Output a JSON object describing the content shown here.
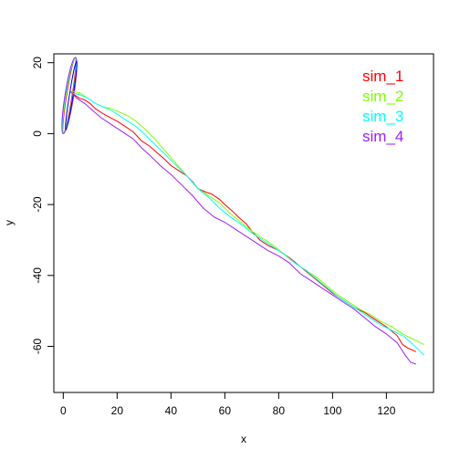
{
  "chart_data": {
    "type": "line",
    "title": "",
    "xlabel": "x",
    "ylabel": "y",
    "xlim": [
      -3.5,
      137.5
    ],
    "ylim": [
      -73,
      22.5
    ],
    "xticks": [
      0,
      20,
      40,
      60,
      80,
      100,
      120
    ],
    "xtick_labels": [
      "0",
      "20",
      "40",
      "60",
      "80",
      "100",
      "120"
    ],
    "yticks": [
      -60,
      -40,
      -20,
      0,
      20
    ],
    "ytick_labels": [
      "-60",
      "-40",
      "-20",
      "0",
      "20"
    ],
    "grid": false,
    "legend_position": "top-right",
    "series": [
      {
        "name": "sim_1",
        "color": "#ff0000",
        "x": [
          2.5,
          4,
          6,
          8,
          10,
          12,
          15,
          18,
          20,
          23,
          26,
          29,
          32,
          35,
          38,
          40,
          43,
          46,
          48,
          50,
          53,
          55,
          58,
          60,
          63,
          65,
          68,
          70,
          73,
          76,
          80,
          84,
          88,
          92,
          96,
          100,
          104,
          108,
          112,
          116,
          120,
          124,
          126,
          128,
          131
        ],
        "y": [
          12,
          11,
          10,
          9.5,
          8.5,
          7,
          5.5,
          4.3,
          3.5,
          2,
          0.5,
          -2,
          -3.5,
          -5.5,
          -7.5,
          -9,
          -10.5,
          -12,
          -13.5,
          -15.5,
          -16.5,
          -17,
          -18.5,
          -20,
          -22,
          -23.5,
          -25.5,
          -27.5,
          -30,
          -31.5,
          -33,
          -35,
          -37.5,
          -40,
          -42.5,
          -45,
          -47,
          -49,
          -50.5,
          -52.5,
          -54.5,
          -57,
          -59.5,
          -60.5,
          -61.5
        ]
      },
      {
        "name": "sim_2",
        "color": "#7fff00",
        "x": [
          3,
          6,
          9,
          12,
          15,
          18,
          21,
          24,
          27,
          30,
          34,
          38,
          42,
          46,
          50,
          54,
          58,
          62,
          66,
          70,
          74,
          78,
          82,
          86,
          90,
          94,
          98,
          102,
          106,
          110,
          114,
          118,
          122,
          126,
          130,
          134
        ],
        "y": [
          12,
          11.5,
          10,
          8.5,
          7.5,
          7,
          6,
          5,
          3.5,
          1.5,
          -1.5,
          -5,
          -8.5,
          -12,
          -15.5,
          -17.5,
          -19.5,
          -22.5,
          -25,
          -27.5,
          -29.5,
          -31.5,
          -34,
          -36.5,
          -38.5,
          -40.5,
          -43,
          -45.5,
          -47.5,
          -49.5,
          -51,
          -53,
          -54.5,
          -56.5,
          -58,
          -59.5
        ]
      },
      {
        "name": "sim_3",
        "color": "#00ffff",
        "x": [
          3,
          6,
          9,
          12,
          15,
          18,
          21,
          24,
          27,
          30,
          34,
          38,
          42,
          46,
          50,
          54,
          58,
          62,
          66,
          70,
          74,
          78,
          82,
          86,
          90,
          94,
          98,
          102,
          106,
          110,
          114,
          118,
          122,
          126,
          130,
          134
        ],
        "y": [
          11.5,
          11,
          10,
          8.5,
          7.5,
          6.5,
          5,
          3.5,
          2,
          0,
          -3,
          -6,
          -9,
          -12,
          -15.5,
          -18,
          -21,
          -23.5,
          -25.5,
          -28,
          -30,
          -32,
          -34,
          -36.5,
          -38.5,
          -41,
          -43.5,
          -46,
          -48,
          -50,
          -52,
          -54,
          -55.5,
          -57,
          -59.5,
          -62.5
        ]
      },
      {
        "name": "sim_4",
        "color": "#a020f0",
        "x": [
          2.5,
          5,
          8,
          11,
          14,
          17,
          20,
          23,
          26,
          29,
          32,
          36,
          40,
          44,
          48,
          52,
          56,
          60,
          64,
          68,
          72,
          76,
          80,
          84,
          88,
          92,
          96,
          100,
          104,
          108,
          112,
          116,
          120,
          124,
          127,
          129,
          131
        ],
        "y": [
          12,
          10,
          8.5,
          6.5,
          4.5,
          3,
          1.5,
          0,
          -1.5,
          -4,
          -6,
          -9,
          -11.5,
          -14.5,
          -17.5,
          -21,
          -23.5,
          -25,
          -27,
          -29,
          -31,
          -33,
          -34.5,
          -36.5,
          -39.5,
          -41.5,
          -43.5,
          -45.5,
          -47.5,
          -49.5,
          -52,
          -54.5,
          -56.5,
          -59,
          -62.5,
          -64.5,
          -65
        ]
      }
    ]
  }
}
